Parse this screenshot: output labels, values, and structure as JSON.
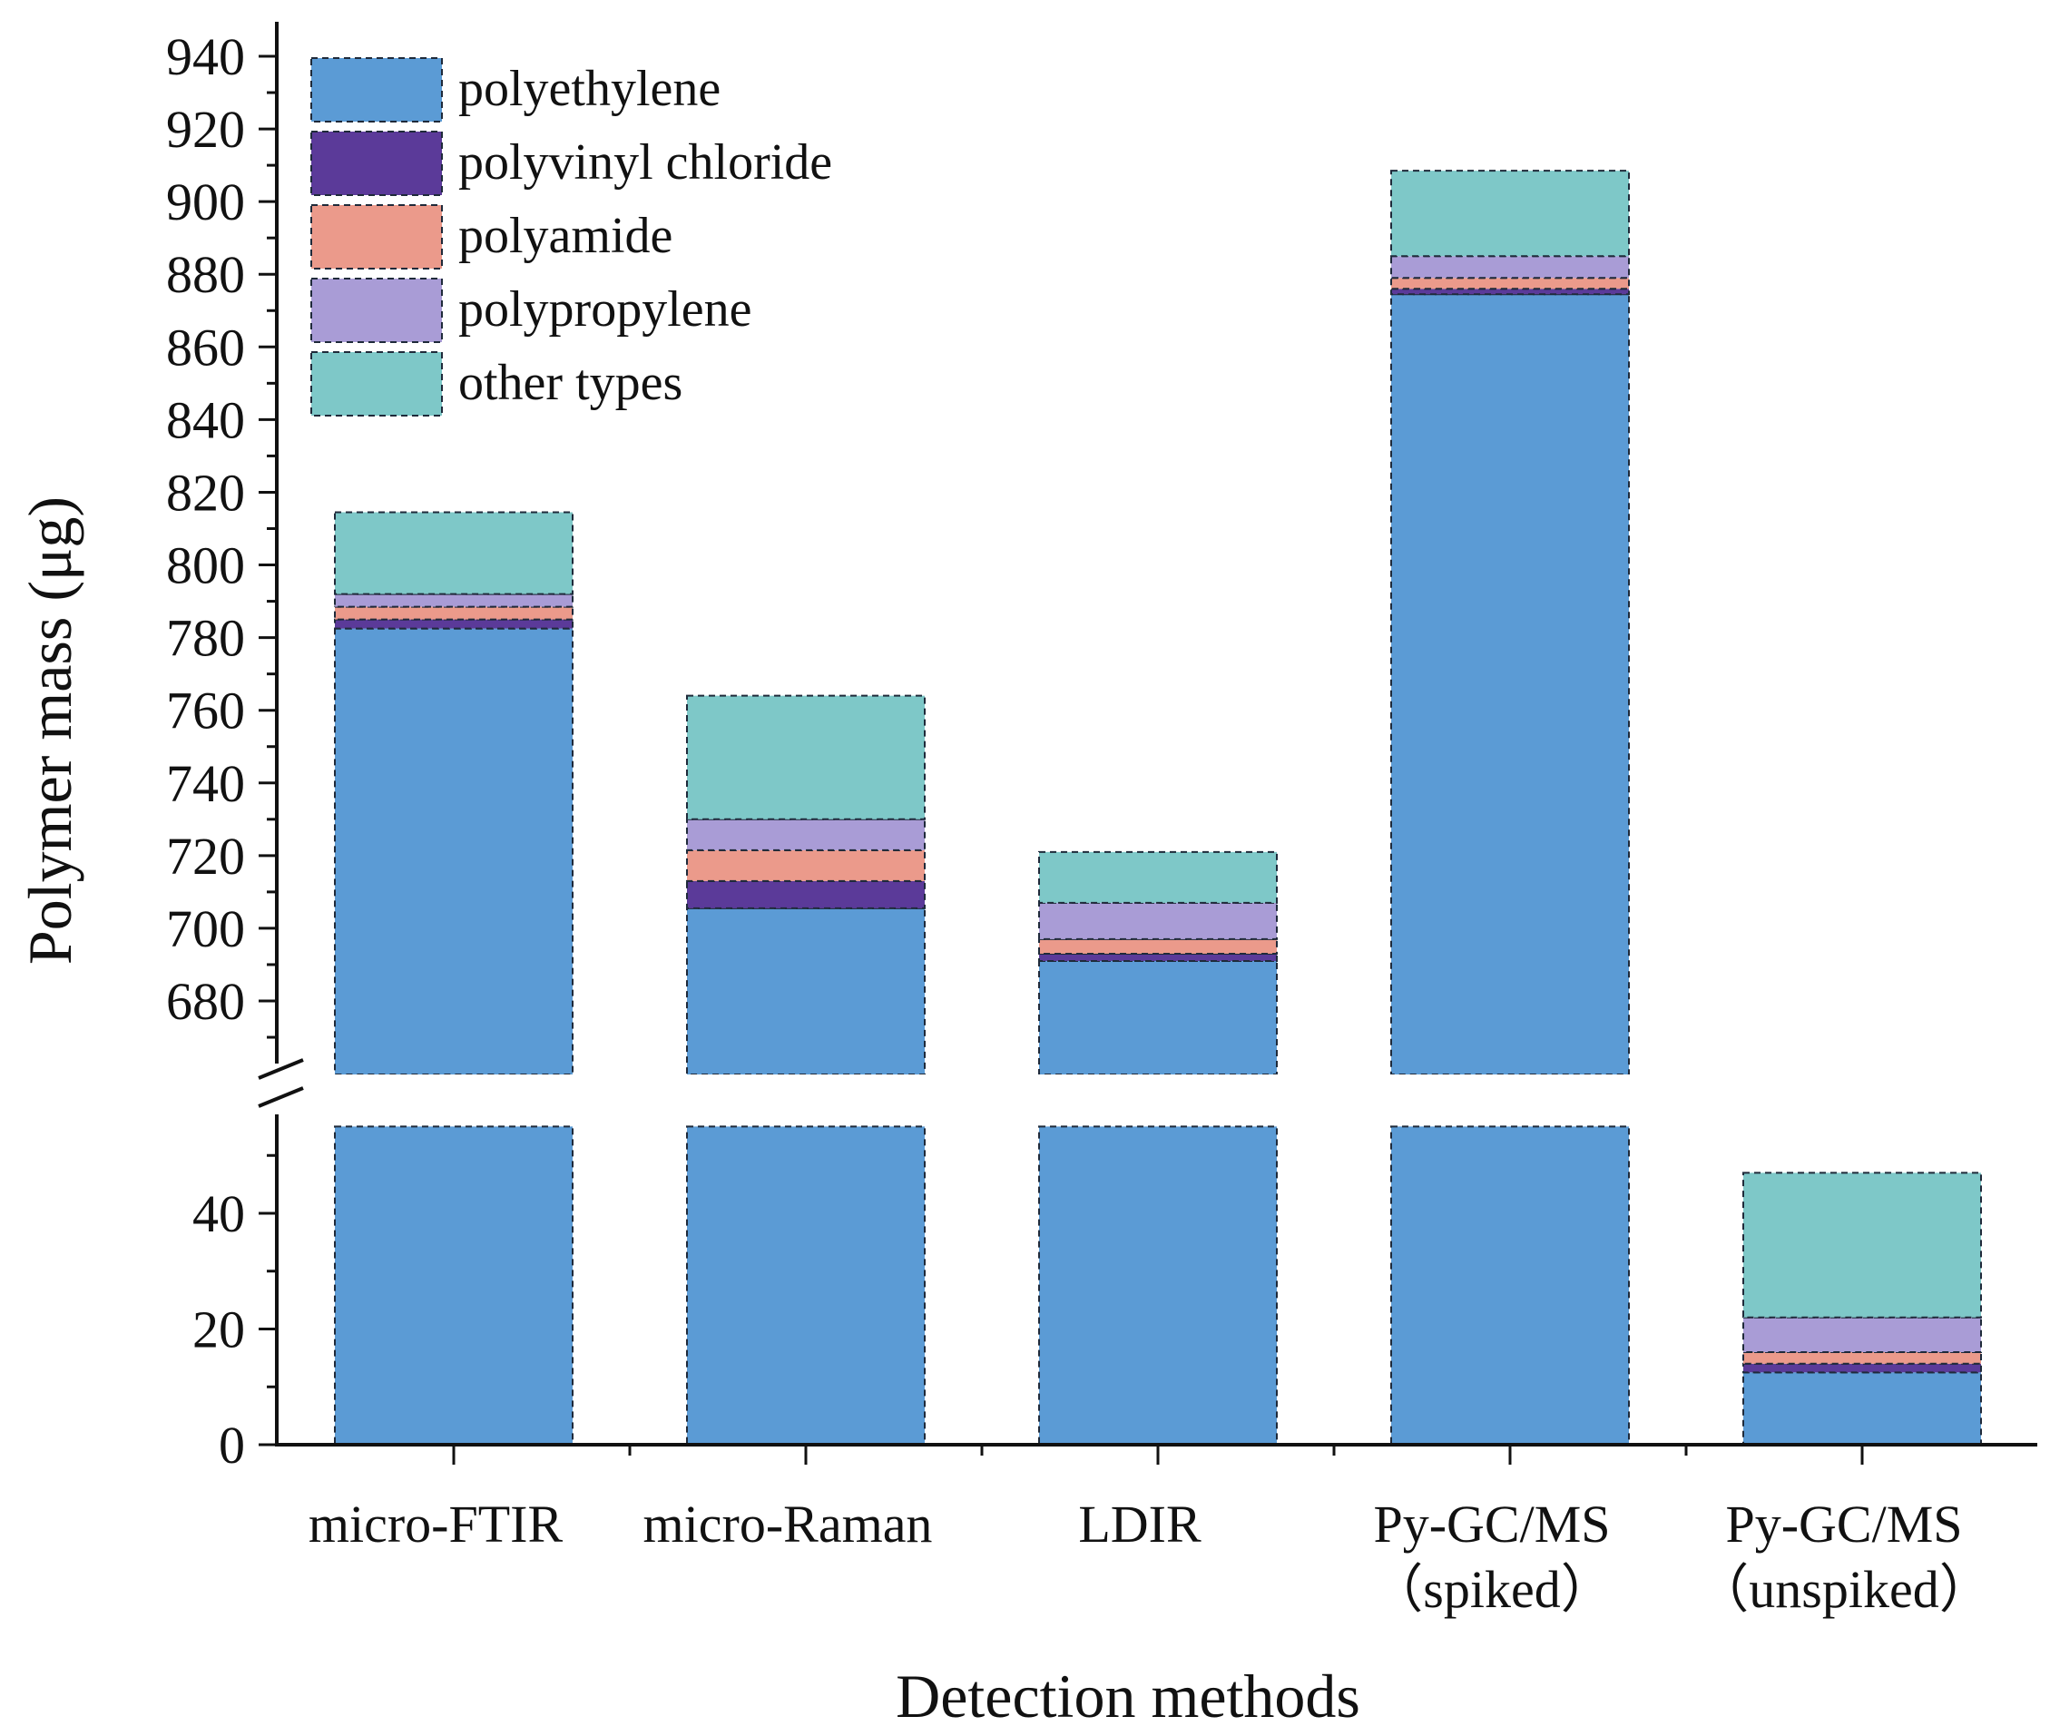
{
  "chart_data": {
    "type": "bar",
    "stacked": true,
    "xlabel": "Detection methods",
    "ylabel": "Polymer mass (μg)",
    "legend_position": "top-left",
    "grid": false,
    "y_axis_break": {
      "from": 55,
      "to": 660
    },
    "y_lower_ticks": [
      0,
      20,
      40
    ],
    "y_upper_ticks": [
      680,
      700,
      720,
      740,
      760,
      780,
      800,
      820,
      840,
      860,
      880,
      900,
      920,
      940
    ],
    "categories": [
      {
        "line1": "micro-FTIR",
        "line2": ""
      },
      {
        "line1": "micro-Raman",
        "line2": ""
      },
      {
        "line1": "LDIR",
        "line2": ""
      },
      {
        "line1": "Py-GC/MS",
        "line2": "（spiked）"
      },
      {
        "line1": "Py-GC/MS",
        "line2": "（unspiked）"
      }
    ],
    "series": [
      {
        "name": "polyethylene",
        "color": "#5B9BD5",
        "values": [
          782.5,
          705.5,
          691,
          874.5,
          12.5
        ]
      },
      {
        "name": "polyvinyl chloride",
        "color": "#5B3A99",
        "values": [
          2.5,
          7.5,
          2,
          1.5,
          1.5
        ]
      },
      {
        "name": "polyamide",
        "color": "#EB9A8B",
        "values": [
          3.5,
          8.5,
          4,
          3,
          2
        ]
      },
      {
        "name": "polypropylene",
        "color": "#A99CD6",
        "values": [
          3.5,
          8.5,
          10,
          6,
          6
        ]
      },
      {
        "name": "other types",
        "color": "#7EC8C8",
        "values": [
          22.5,
          34,
          14,
          23.5,
          25
        ]
      }
    ]
  }
}
